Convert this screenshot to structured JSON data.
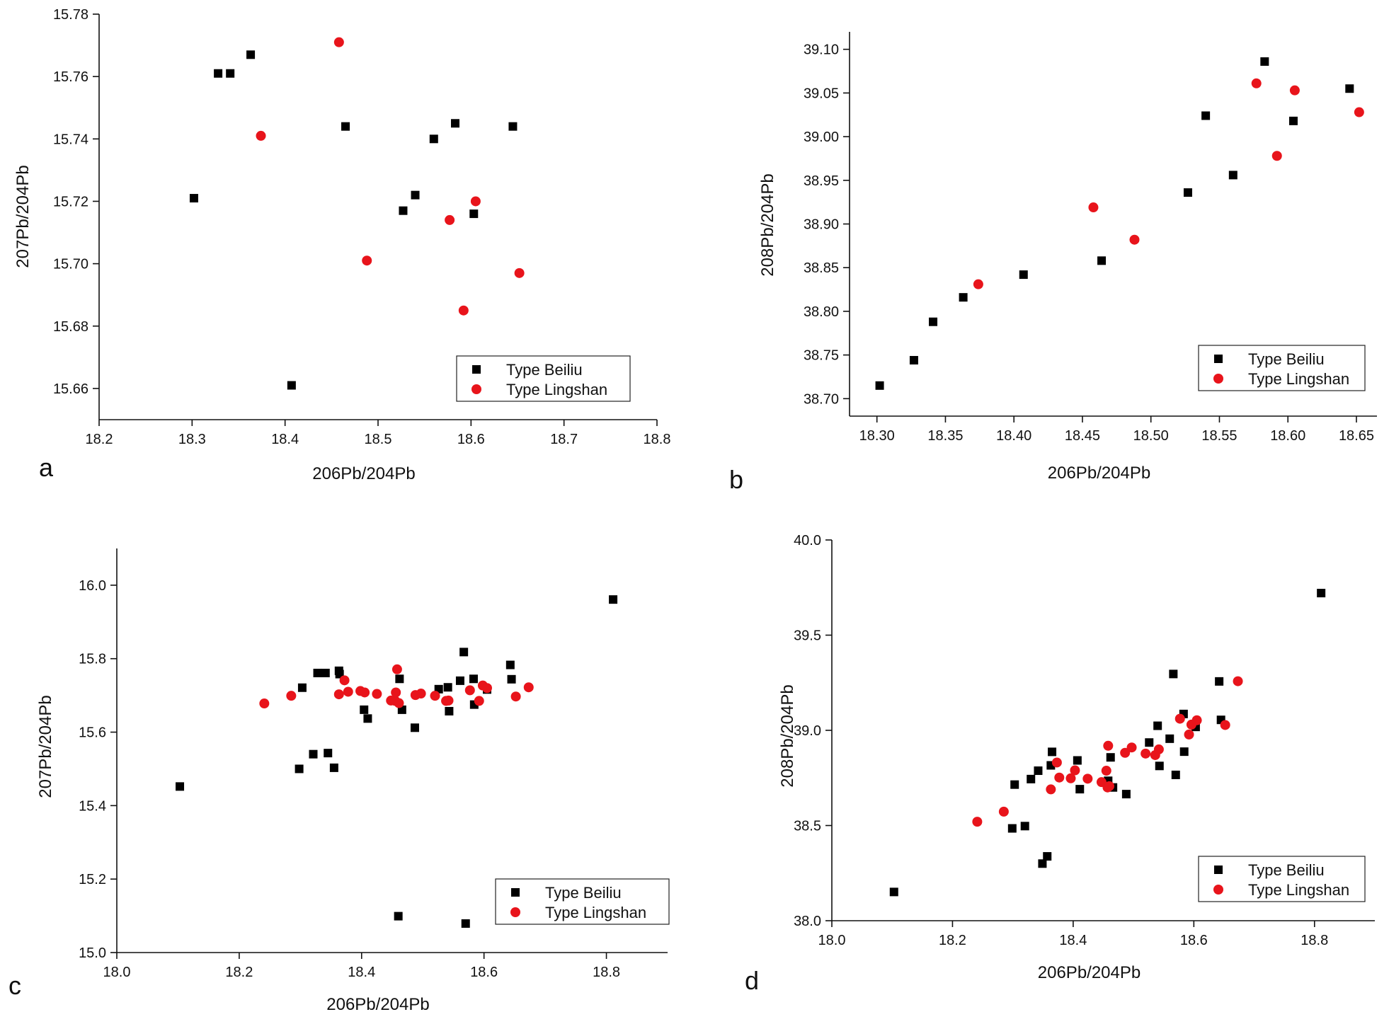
{
  "colors": {
    "beiliu": "#000000",
    "lingshan": "#e8141b"
  },
  "chart_data": [
    {
      "panel": "a",
      "type": "scatter",
      "title": "",
      "xlabel": "206Pb/204Pb",
      "ylabel": "207Pb/204Pb",
      "xlim": [
        18.2,
        18.8
      ],
      "ylim": [
        15.65,
        15.78
      ],
      "xticks": [
        "18.2",
        "18.3",
        "18.4",
        "18.5",
        "18.6",
        "18.7",
        "18.8"
      ],
      "yticks": [
        "15.66",
        "15.68",
        "15.70",
        "15.72",
        "15.74",
        "15.76",
        "15.78"
      ],
      "legend": [
        "Type Beiliu",
        "Type Lingshan"
      ],
      "legend_position": "bottom-right",
      "series": [
        {
          "name": "Type Beiliu",
          "marker": "square",
          "x": [
            18.302,
            18.328,
            18.341,
            18.363,
            18.465,
            18.407,
            18.527,
            18.54,
            18.56,
            18.583,
            18.603,
            18.645
          ],
          "y": [
            15.721,
            15.761,
            15.761,
            15.767,
            15.744,
            15.661,
            15.717,
            15.722,
            15.74,
            15.745,
            15.716,
            15.744
          ]
        },
        {
          "name": "Type Lingshan",
          "marker": "circle",
          "x": [
            18.374,
            18.458,
            18.488,
            18.577,
            18.592,
            18.605,
            18.652
          ],
          "y": [
            15.741,
            15.771,
            15.701,
            15.714,
            15.685,
            15.72,
            15.697
          ]
        }
      ]
    },
    {
      "panel": "b",
      "type": "scatter",
      "title": "",
      "xlabel": "206Pb/204Pb",
      "ylabel": "208Pb/204Pb",
      "xlim": [
        18.28,
        18.665
      ],
      "ylim": [
        38.68,
        39.12
      ],
      "xticks": [
        "18.30",
        "18.35",
        "18.40",
        "18.45",
        "18.50",
        "18.55",
        "18.60",
        "18.65"
      ],
      "yticks": [
        "38.70",
        "38.75",
        "38.80",
        "38.85",
        "38.90",
        "38.95",
        "39.00",
        "39.05",
        "39.10"
      ],
      "legend": [
        "Type Beiliu",
        "Type Lingshan"
      ],
      "legend_position": "bottom-right",
      "series": [
        {
          "name": "Type Beiliu",
          "marker": "square",
          "x": [
            18.302,
            18.327,
            18.341,
            18.363,
            18.407,
            18.464,
            18.527,
            18.54,
            18.56,
            18.583,
            18.604,
            18.645
          ],
          "y": [
            38.715,
            38.744,
            38.788,
            38.816,
            38.842,
            38.858,
            38.936,
            39.024,
            38.956,
            39.086,
            39.018,
            39.055
          ]
        },
        {
          "name": "Type Lingshan",
          "marker": "circle",
          "x": [
            18.374,
            18.458,
            18.488,
            18.577,
            18.592,
            18.605,
            18.652
          ],
          "y": [
            38.831,
            38.919,
            38.882,
            39.061,
            38.978,
            39.053,
            39.028
          ]
        }
      ]
    },
    {
      "panel": "c",
      "type": "scatter",
      "title": "",
      "xlabel": "206Pb/204Pb",
      "ylabel": "207Pb/204Pb",
      "xlim": [
        18.0,
        18.9
      ],
      "ylim": [
        15.0,
        16.1
      ],
      "xticks": [
        "18.0",
        "18.2",
        "18.4",
        "18.6",
        "18.8"
      ],
      "yticks": [
        "15.0",
        "15.2",
        "15.4",
        "15.6",
        "15.8",
        "16.0"
      ],
      "legend": [
        "Type Beiliu",
        "Type Lingshan"
      ],
      "legend_position": "bottom-right",
      "series": [
        {
          "name": "Type Beiliu",
          "marker": "square",
          "x": [
            18.103,
            18.298,
            18.303,
            18.321,
            18.328,
            18.341,
            18.345,
            18.355,
            18.363,
            18.364,
            18.404,
            18.41,
            18.46,
            18.462,
            18.466,
            18.487,
            18.526,
            18.541,
            18.543,
            18.561,
            18.567,
            18.583,
            18.584,
            18.643,
            18.645,
            18.57,
            18.605,
            18.811
          ],
          "y": [
            15.452,
            15.5,
            15.721,
            15.54,
            15.761,
            15.761,
            15.543,
            15.503,
            15.767,
            15.758,
            15.661,
            15.637,
            15.099,
            15.745,
            15.661,
            15.612,
            15.717,
            15.722,
            15.657,
            15.74,
            15.818,
            15.745,
            15.675,
            15.783,
            15.744,
            15.079,
            15.716,
            15.961
          ]
        },
        {
          "name": "Type Lingshan",
          "marker": "circle",
          "x": [
            18.241,
            18.285,
            18.363,
            18.372,
            18.378,
            18.398,
            18.405,
            18.425,
            18.448,
            18.455,
            18.456,
            18.458,
            18.461,
            18.488,
            18.497,
            18.52,
            18.538,
            18.542,
            18.577,
            18.592,
            18.598,
            18.605,
            18.652,
            18.673
          ],
          "y": [
            15.678,
            15.699,
            15.703,
            15.741,
            15.71,
            15.712,
            15.708,
            15.704,
            15.686,
            15.685,
            15.708,
            15.771,
            15.679,
            15.701,
            15.705,
            15.699,
            15.685,
            15.686,
            15.714,
            15.685,
            15.727,
            15.72,
            15.697,
            15.722
          ]
        }
      ]
    },
    {
      "panel": "d",
      "type": "scatter",
      "title": "",
      "xlabel": "206Pb/204Pb",
      "ylabel": "208Pb/204Pb",
      "xlim": [
        18.0,
        18.9
      ],
      "ylim": [
        38.0,
        40.0
      ],
      "xticks": [
        "18.0",
        "18.2",
        "18.4",
        "18.6",
        "18.8"
      ],
      "yticks": [
        "38.0",
        "38.5",
        "39.0",
        "39.5",
        "40.0"
      ],
      "legend": [
        "Type Beiliu",
        "Type Lingshan"
      ],
      "legend_position": "bottom-right",
      "series": [
        {
          "name": "Type Beiliu",
          "marker": "square",
          "x": [
            18.103,
            18.299,
            18.303,
            18.32,
            18.33,
            18.342,
            18.349,
            18.357,
            18.363,
            18.365,
            18.407,
            18.411,
            18.458,
            18.462,
            18.466,
            18.488,
            18.526,
            18.54,
            18.543,
            18.56,
            18.566,
            18.57,
            18.583,
            18.584,
            18.603,
            18.642,
            18.645,
            18.811
          ],
          "y": [
            38.151,
            38.485,
            38.715,
            38.497,
            38.744,
            38.788,
            38.3,
            38.338,
            38.816,
            38.887,
            38.842,
            38.691,
            38.735,
            38.858,
            38.7,
            38.665,
            38.936,
            39.024,
            38.813,
            38.956,
            39.296,
            38.766,
            39.086,
            38.888,
            39.018,
            39.257,
            39.055,
            39.721
          ]
        },
        {
          "name": "Type Lingshan",
          "marker": "circle",
          "x": [
            18.241,
            18.285,
            18.363,
            18.373,
            18.377,
            18.396,
            18.403,
            18.424,
            18.447,
            18.455,
            18.457,
            18.458,
            18.46,
            18.486,
            18.497,
            18.52,
            18.536,
            18.542,
            18.577,
            18.592,
            18.596,
            18.605,
            18.652,
            18.673
          ],
          "y": [
            38.52,
            38.573,
            38.69,
            38.831,
            38.752,
            38.748,
            38.79,
            38.746,
            38.728,
            38.788,
            38.7,
            38.919,
            38.707,
            38.882,
            38.91,
            38.878,
            38.87,
            38.9,
            39.061,
            38.978,
            39.03,
            39.053,
            39.028,
            39.258
          ]
        }
      ]
    }
  ]
}
